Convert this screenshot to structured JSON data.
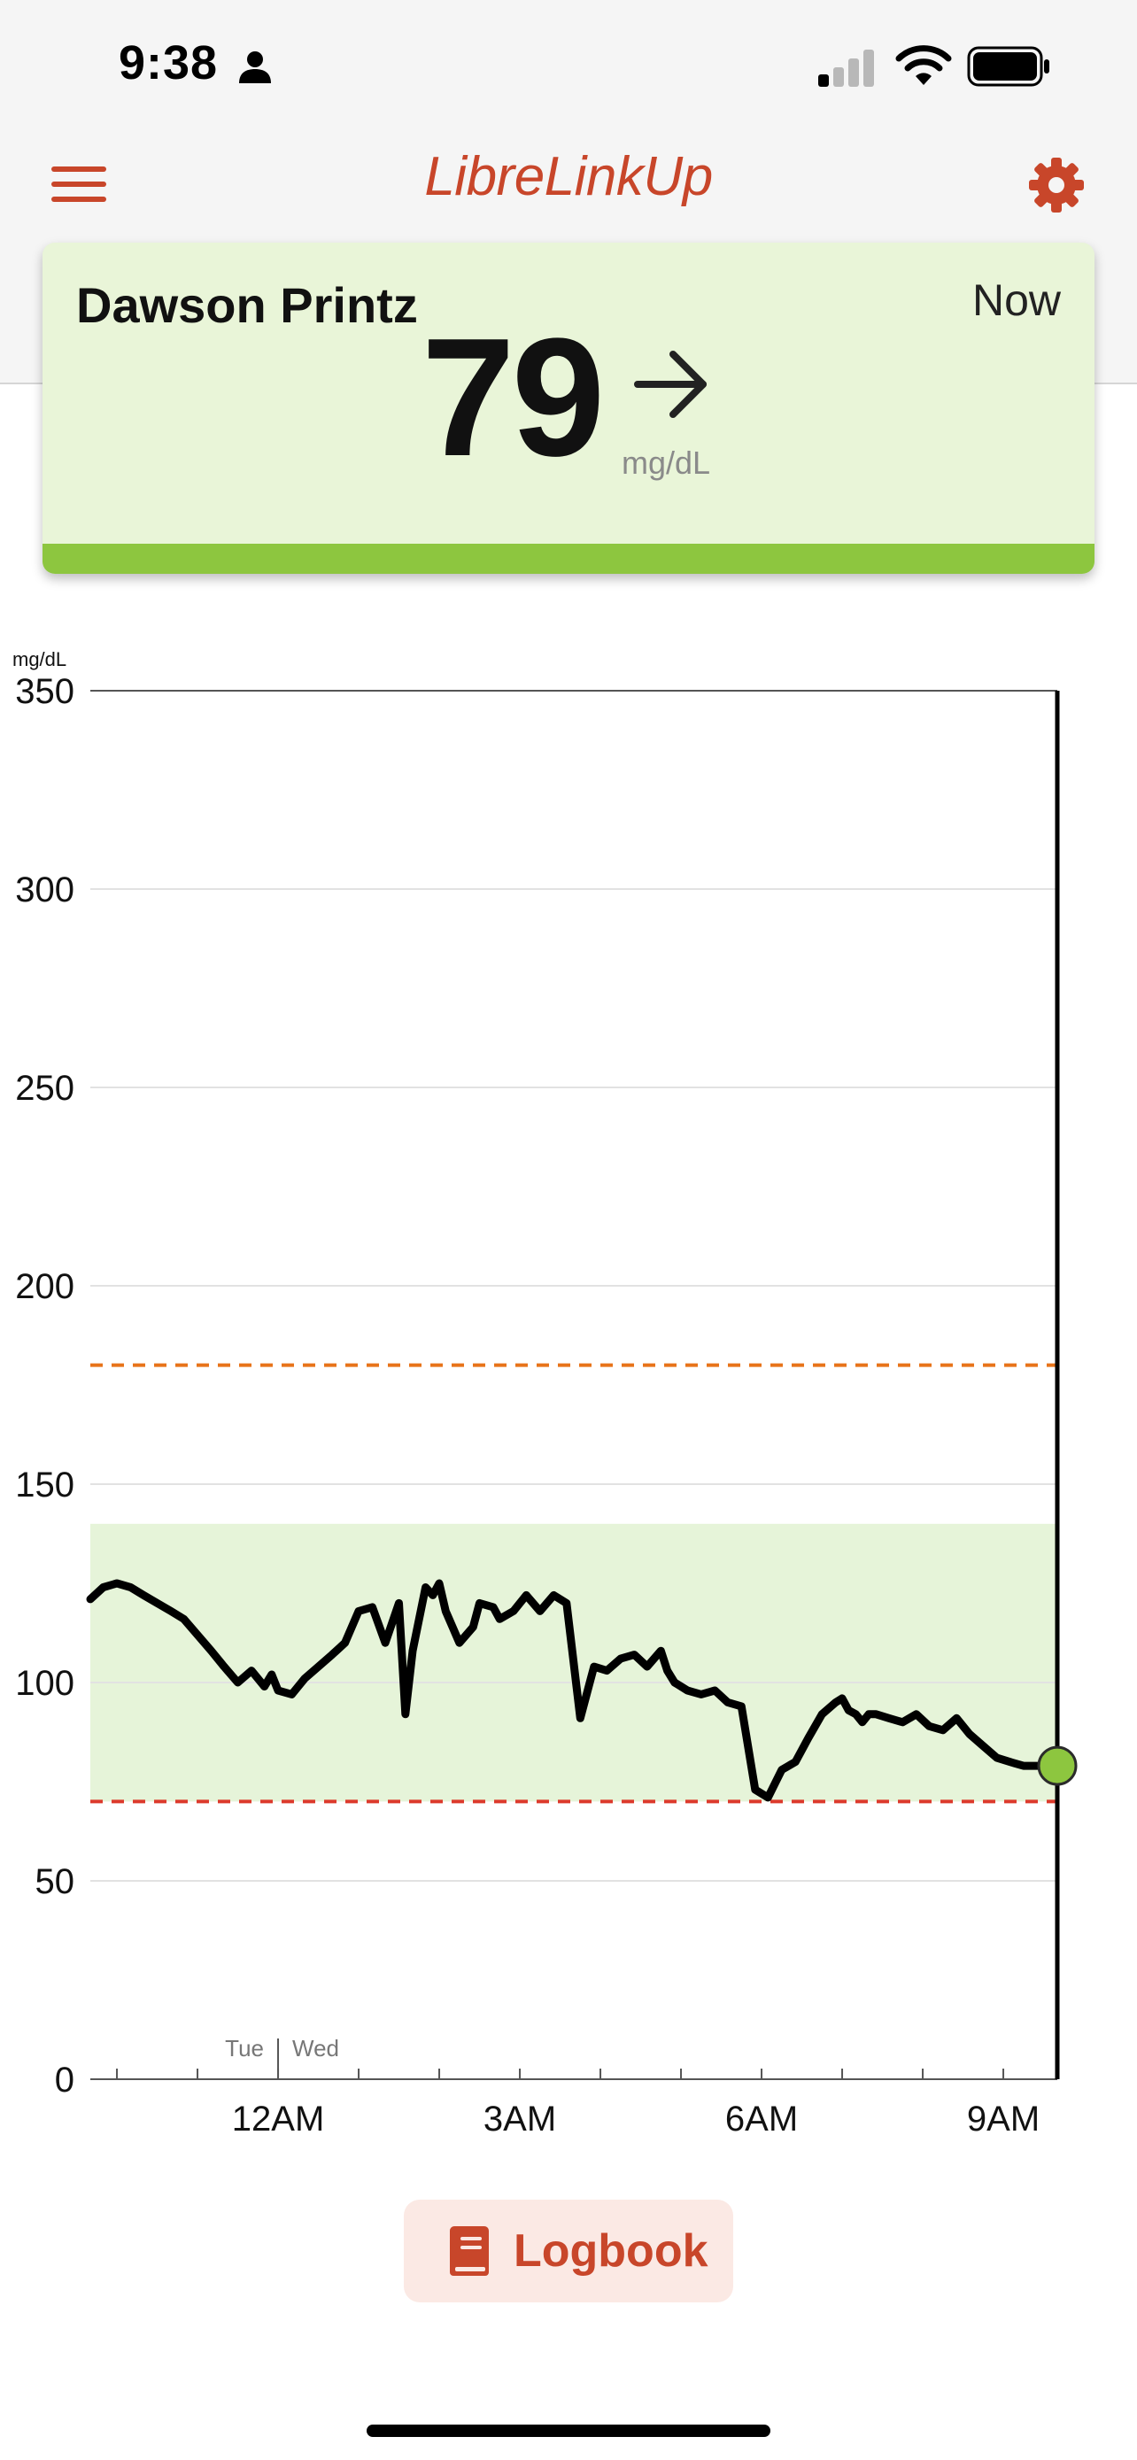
{
  "status_bar": {
    "time": "9:38",
    "icons": [
      "person-icon",
      "cellular-signal-icon",
      "wifi-icon",
      "battery-icon"
    ]
  },
  "nav": {
    "title": "LibreLinkUp",
    "menu_icon": "hamburger-menu-icon",
    "settings_icon": "gear-icon"
  },
  "patient": {
    "name": "Dawson Printz",
    "time_label": "Now",
    "glucose_value": "79",
    "unit": "mg/dL",
    "trend_icon": "arrow-right-icon",
    "status_color": "#8dc63f"
  },
  "colors": {
    "accent": "#c8462a",
    "in_range_band": "#e6f4d9",
    "high_limit_line": "#e8731a",
    "low_limit_line": "#dc3a2c",
    "current_point": "#8dc63f"
  },
  "chart_data": {
    "type": "line",
    "ylabel": "mg/dL",
    "ylim": [
      0,
      350
    ],
    "yticks": [
      0,
      50,
      100,
      150,
      200,
      250,
      300,
      350
    ],
    "xlim": [
      -2.33,
      9.67
    ],
    "xtick_labels": [
      {
        "label": "12AM",
        "x": 0
      },
      {
        "label": "3AM",
        "x": 3
      },
      {
        "label": "6AM",
        "x": 6
      },
      {
        "label": "9AM",
        "x": 9
      }
    ],
    "day_labels": {
      "before": "Tue",
      "after": "Wed",
      "x": 0
    },
    "target_range": [
      70,
      140
    ],
    "high_limit": 180,
    "low_limit": 70,
    "grid": true,
    "series": [
      {
        "x": [
          -2.33,
          -2.17,
          -2.0,
          -1.83,
          -1.67,
          -1.5,
          -1.33,
          -1.17,
          -1.0,
          -0.83,
          -0.67,
          -0.5,
          -0.33,
          -0.17,
          -0.08,
          0.0,
          0.17,
          0.33,
          0.5,
          0.67,
          0.83,
          1.0,
          1.17,
          1.33,
          1.5,
          1.58,
          1.67,
          1.83,
          1.92,
          2.0,
          2.08,
          2.25,
          2.42,
          2.5,
          2.67,
          2.75,
          2.92,
          3.08,
          3.25,
          3.42,
          3.58,
          3.75,
          3.92,
          4.08,
          4.25,
          4.42,
          4.58,
          4.75,
          4.83,
          4.92,
          5.08,
          5.25,
          5.42,
          5.58,
          5.75,
          5.92,
          6.08,
          6.25,
          6.42,
          6.58,
          6.75,
          6.92,
          7.0,
          7.08,
          7.17,
          7.25,
          7.33,
          7.42,
          7.58,
          7.75,
          7.92,
          8.08,
          8.25,
          8.42,
          8.58,
          8.75,
          8.92,
          9.08,
          9.25,
          9.42,
          9.58,
          9.67
        ],
        "values": [
          121,
          124,
          125,
          124,
          122,
          120,
          118,
          116,
          112,
          108,
          104,
          100,
          103,
          99,
          102,
          98,
          97,
          101,
          104,
          107,
          110,
          118,
          119,
          110,
          120,
          92,
          108,
          124,
          122,
          125,
          118,
          110,
          114,
          120,
          119,
          116,
          118,
          122,
          118,
          122,
          120,
          91,
          104,
          103,
          106,
          107,
          104,
          108,
          103,
          100,
          98,
          97,
          98,
          95,
          94,
          73,
          71,
          78,
          80,
          86,
          92,
          95,
          96,
          93,
          92,
          90,
          92,
          92,
          91,
          90,
          92,
          89,
          88,
          91,
          87,
          84,
          81,
          80,
          79,
          79,
          79,
          79
        ]
      }
    ],
    "current_reading": {
      "x": 9.67,
      "value": 79
    }
  },
  "logbook": {
    "label": "Logbook",
    "icon": "book-icon"
  }
}
